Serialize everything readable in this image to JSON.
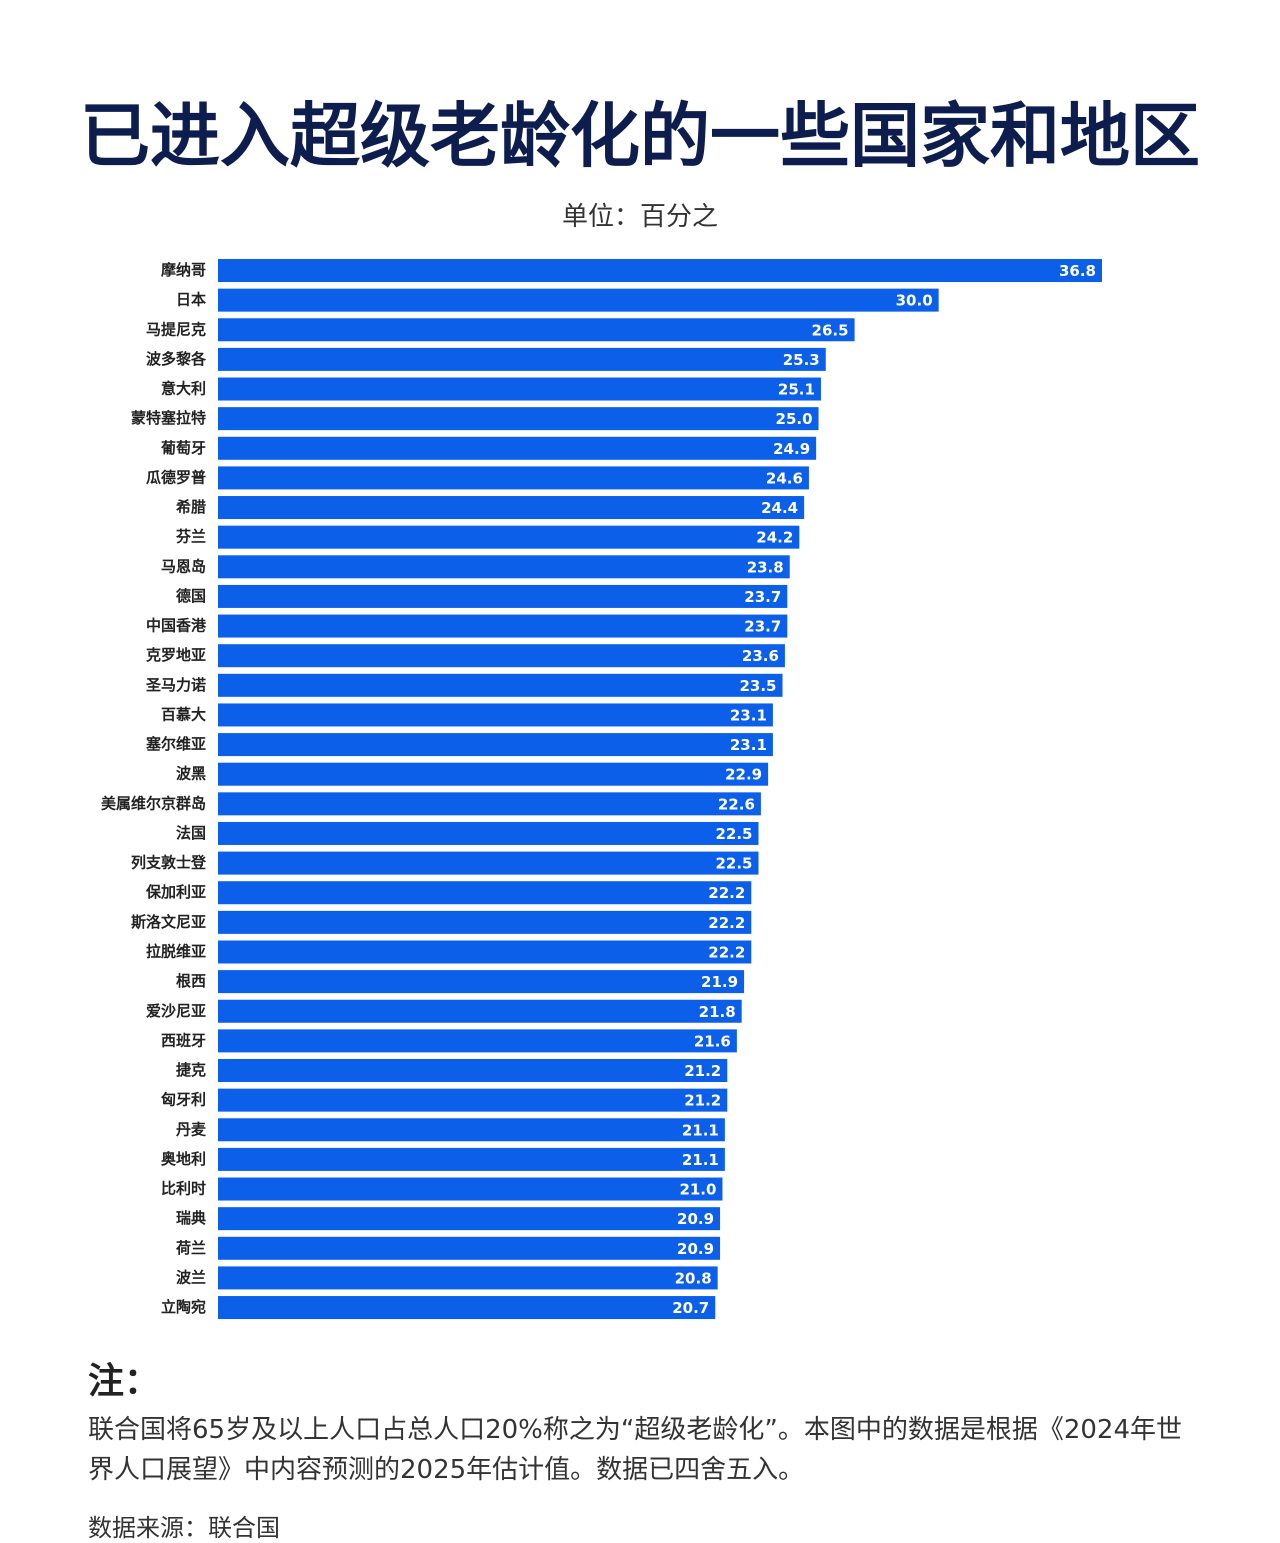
{
  "chart_data": {
    "type": "hbar",
    "title": "已进入超级老龄化的一些国家和地区",
    "subtitle": "单位：百分之",
    "categories": [
      "摩纳哥",
      "日本",
      "马提尼克",
      "波多黎各",
      "意大利",
      "蒙特塞拉特",
      "葡萄牙",
      "瓜德罗普",
      "希腊",
      "芬兰",
      "马恩岛",
      "德国",
      "中国香港",
      "克罗地亚",
      "圣马力诺",
      "百慕大",
      "塞尔维亚",
      "波黑",
      "美属维尔京群岛",
      "法国",
      "列支敦士登",
      "保加利亚",
      "斯洛文尼亚",
      "拉脱维亚",
      "根西",
      "爱沙尼亚",
      "西班牙",
      "捷克",
      "匈牙利",
      "丹麦",
      "奥地利",
      "比利时",
      "瑞典",
      "荷兰",
      "波兰",
      "立陶宛"
    ],
    "values": [
      36.8,
      30.0,
      26.5,
      25.3,
      25.1,
      25.0,
      24.9,
      24.6,
      24.4,
      24.2,
      23.8,
      23.7,
      23.7,
      23.6,
      23.5,
      23.1,
      23.1,
      22.9,
      22.6,
      22.5,
      22.5,
      22.2,
      22.2,
      22.2,
      21.9,
      21.8,
      21.6,
      21.2,
      21.2,
      21.1,
      21.1,
      21.0,
      20.9,
      20.9,
      20.8,
      20.7
    ],
    "value_labels": [
      "36.8",
      "30.0",
      "26.5",
      "25.3",
      "25.1",
      "25.0",
      "24.9",
      "24.6",
      "24.4",
      "24.2",
      "23.8",
      "23.7",
      "23.7",
      "23.6",
      "23.5",
      "23.1",
      "23.1",
      "22.9",
      "22.6",
      "22.5",
      "22.5",
      "22.2",
      "22.2",
      "22.2",
      "21.9",
      "21.8",
      "21.6",
      "21.2",
      "21.2",
      "21.1",
      "21.1",
      "21.0",
      "20.9",
      "20.9",
      "20.8",
      "20.7"
    ],
    "color": "#0b5fe8"
  },
  "note": {
    "heading": "注：",
    "text": "联合国将65岁及以上人口占总人口20%称之为“超级老龄化”。本图中的数据是根据《2024年世界人口展望》中内容预测的2025年估计值。数据已四舍五入。",
    "source": "数据来源：联合国"
  }
}
